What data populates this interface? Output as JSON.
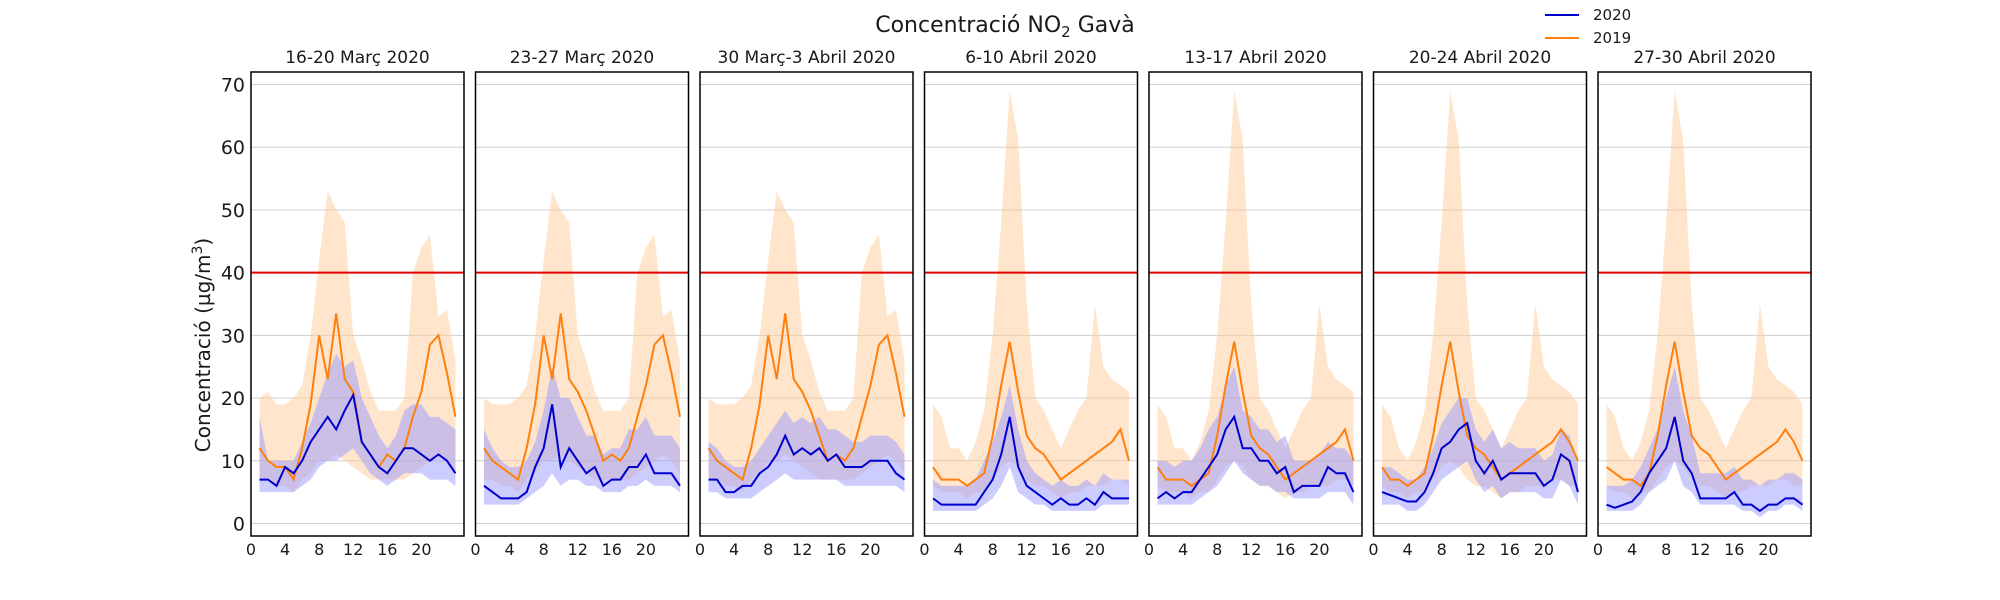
{
  "chart_data": {
    "type": "line",
    "title": "Concentració NO",
    "title_sub": "2",
    "title_suffix": " Gavà",
    "ylabel": "Concentració (µg/m",
    "ylabel_sup": "3",
    "ylabel_end": ")",
    "ylim": [
      -2,
      72
    ],
    "yticks": [
      0,
      10,
      20,
      30,
      40,
      50,
      60,
      70
    ],
    "xlim": [
      0,
      25
    ],
    "xticks": [
      0,
      4,
      8,
      12,
      16,
      20
    ],
    "grid": true,
    "legend_position": "top-right",
    "legend": [
      {
        "label": "2020",
        "color": "#0000cc"
      },
      {
        "label": "2019",
        "color": "#ff7f0e"
      }
    ],
    "colors": {
      "line_2020": "#0000cc",
      "band_2020": "#9999ff",
      "line_2019": "#ff7f0e",
      "band_2019": "#ffcc99",
      "limit": "#e00000"
    },
    "limit_value": 40,
    "hours": [
      1,
      2,
      3,
      4,
      5,
      6,
      7,
      8,
      9,
      10,
      11,
      12,
      13,
      14,
      15,
      16,
      17,
      18,
      19,
      20,
      21,
      22,
      23,
      24
    ],
    "panels": [
      {
        "title": "16-20 Març 2020",
        "series2020": [
          7,
          7,
          6,
          9,
          8,
          10,
          13,
          15,
          17,
          15,
          18,
          20.5,
          13,
          11,
          9,
          8,
          10,
          12,
          12,
          11,
          10,
          11,
          10,
          8
        ],
        "band2020_low": [
          5,
          5,
          5,
          5,
          5,
          6,
          7,
          9,
          10,
          10,
          11,
          12,
          10,
          8,
          7,
          6,
          7,
          8,
          8,
          8,
          7,
          7,
          7,
          6
        ],
        "band2020_high": [
          17,
          10,
          10,
          10,
          10,
          13,
          16,
          20,
          24,
          27,
          25,
          26,
          20,
          17,
          14,
          12,
          14,
          18,
          19,
          19,
          17,
          17,
          16,
          15
        ],
        "series2019": [
          12,
          10,
          9,
          9,
          7,
          12,
          19,
          30,
          23,
          33.5,
          23,
          21,
          13,
          11,
          9,
          11,
          10,
          12,
          17,
          21,
          28.5,
          30,
          24,
          17
        ],
        "band2019_low": [
          7,
          7,
          6,
          6,
          5,
          7,
          8,
          10,
          10,
          11,
          10,
          9,
          8,
          7,
          7,
          7,
          7,
          7,
          8,
          9,
          10,
          11,
          10,
          8
        ],
        "band2019_high": [
          20,
          21,
          19,
          19,
          20,
          22,
          30,
          42,
          53,
          50,
          48,
          30,
          26,
          21,
          18,
          18,
          18,
          20,
          40,
          44,
          46,
          33,
          34,
          26
        ]
      },
      {
        "title": "23-27 Març 2020",
        "series2020": [
          6,
          5,
          4,
          4,
          4,
          5,
          9,
          12,
          19,
          9,
          12,
          10,
          8,
          9,
          6,
          7,
          7,
          9,
          9,
          11,
          8,
          8,
          8,
          6
        ],
        "band2020_low": [
          3,
          3,
          3,
          3,
          3,
          4,
          5,
          6,
          8,
          6,
          7,
          7,
          6,
          6,
          5,
          5,
          5,
          6,
          6,
          7,
          6,
          6,
          6,
          5
        ],
        "band2020_high": [
          15,
          12,
          10,
          9,
          9,
          10,
          13,
          18,
          25,
          20,
          20,
          17,
          14,
          14,
          11,
          12,
          12,
          15,
          15,
          17,
          14,
          14,
          14,
          12
        ],
        "series2019": [
          12,
          10,
          9,
          8,
          7,
          12,
          19,
          30,
          23,
          33.5,
          23,
          21,
          18,
          14,
          10,
          11,
          10,
          12,
          17,
          22,
          28.5,
          30,
          24,
          17
        ],
        "band2019_low": [
          7,
          7,
          6,
          6,
          5,
          7,
          8,
          10,
          10,
          11,
          10,
          9,
          8,
          7,
          7,
          7,
          7,
          7,
          8,
          9,
          10,
          11,
          10,
          8
        ],
        "band2019_high": [
          20,
          19,
          19,
          19,
          20,
          22,
          30,
          42,
          53,
          50,
          48,
          30,
          26,
          21,
          18,
          18,
          18,
          20,
          40,
          44,
          46,
          33,
          34,
          26
        ]
      },
      {
        "title": "30 Març-3 Abril 2020",
        "series2020": [
          7,
          7,
          5,
          5,
          6,
          6,
          8,
          9,
          11,
          14,
          11,
          12,
          11,
          12,
          10,
          11,
          9,
          9,
          9,
          10,
          10,
          10,
          8,
          7
        ],
        "band2020_low": [
          5,
          5,
          4,
          4,
          4,
          4,
          5,
          6,
          7,
          8,
          7,
          7,
          7,
          7,
          7,
          7,
          6,
          6,
          6,
          6,
          6,
          6,
          6,
          5
        ],
        "band2020_high": [
          13,
          12,
          10,
          9,
          9,
          10,
          12,
          14,
          16,
          18,
          16,
          17,
          16,
          17,
          15,
          15,
          14,
          13,
          13,
          14,
          14,
          14,
          13,
          11
        ],
        "series2019": [
          12,
          10,
          9,
          8,
          7,
          12,
          19,
          30,
          23,
          33.5,
          23,
          21,
          18,
          14,
          10,
          11,
          10,
          12,
          17,
          22,
          28.5,
          30,
          24,
          17
        ],
        "band2019_low": [
          7,
          7,
          6,
          6,
          5,
          7,
          8,
          10,
          10,
          11,
          10,
          9,
          8,
          7,
          7,
          7,
          7,
          7,
          8,
          9,
          10,
          11,
          10,
          8
        ],
        "band2019_high": [
          20,
          19,
          19,
          19,
          20,
          22,
          30,
          42,
          53,
          50,
          48,
          30,
          26,
          21,
          18,
          18,
          18,
          20,
          40,
          44,
          46,
          33,
          34,
          26
        ]
      },
      {
        "title": "6-10 Abril 2020",
        "series2020": [
          4,
          3,
          3,
          3,
          3,
          3,
          5,
          7,
          11,
          17,
          9,
          6,
          5,
          4,
          3,
          4,
          3,
          3,
          4,
          3,
          5,
          4,
          4,
          4
        ],
        "band2020_low": [
          2,
          2,
          2,
          2,
          2,
          2,
          3,
          4,
          6,
          9,
          5,
          4,
          3,
          3,
          2,
          2,
          2,
          2,
          2,
          2,
          3,
          3,
          3,
          3
        ],
        "band2020_high": [
          7,
          6,
          6,
          6,
          6,
          7,
          10,
          13,
          17,
          22,
          15,
          10,
          8,
          7,
          6,
          7,
          6,
          6,
          7,
          6,
          8,
          7,
          7,
          7
        ],
        "series2019": [
          9,
          7,
          7,
          7,
          6,
          7,
          8,
          14,
          22,
          29,
          21,
          14,
          12,
          11,
          9,
          7,
          8,
          9,
          10,
          11,
          12,
          13,
          15,
          10
        ],
        "band2019_low": [
          6,
          5,
          5,
          5,
          4,
          5,
          5,
          7,
          9,
          10,
          9,
          7,
          6,
          6,
          5,
          4,
          5,
          5,
          6,
          6,
          6,
          7,
          7,
          6
        ],
        "band2019_high": [
          19,
          17,
          12,
          12,
          10,
          13,
          18,
          30,
          48,
          69,
          61,
          35,
          20,
          18,
          15,
          12,
          15,
          18,
          20,
          35,
          25,
          23,
          22,
          21
        ]
      },
      {
        "title": "13-17 Abril 2020",
        "series2020": [
          4,
          5,
          4,
          5,
          5,
          7,
          9,
          11,
          15,
          17,
          12,
          12,
          10,
          10,
          8,
          9,
          5,
          6,
          6,
          6,
          9,
          8,
          8,
          5
        ],
        "band2020_low": [
          3,
          3,
          3,
          3,
          3,
          4,
          5,
          6,
          8,
          10,
          8,
          7,
          6,
          6,
          5,
          5,
          4,
          4,
          4,
          4,
          5,
          5,
          5,
          3
        ],
        "band2020_high": [
          10,
          10,
          9,
          10,
          10,
          12,
          15,
          17,
          22,
          25,
          18,
          17,
          15,
          15,
          13,
          14,
          10,
          10,
          10,
          11,
          13,
          12,
          12,
          10
        ],
        "series2019": [
          9,
          7,
          7,
          7,
          6,
          7,
          8,
          14,
          22,
          29,
          21,
          14,
          12,
          11,
          9,
          7,
          8,
          9,
          10,
          11,
          12,
          13,
          15,
          10
        ],
        "band2019_low": [
          6,
          5,
          5,
          5,
          4,
          5,
          5,
          7,
          9,
          10,
          9,
          7,
          6,
          6,
          5,
          4,
          5,
          5,
          6,
          6,
          6,
          7,
          7,
          6
        ],
        "band2019_high": [
          19,
          17,
          12,
          12,
          10,
          13,
          18,
          30,
          48,
          69,
          61,
          35,
          20,
          18,
          15,
          12,
          15,
          18,
          20,
          35,
          25,
          23,
          22,
          21
        ]
      },
      {
        "title": "20-24 Abril 2020",
        "series2020": [
          5,
          4.5,
          4,
          3.5,
          3.5,
          5,
          8,
          12,
          13,
          15,
          16,
          10,
          8,
          10,
          7,
          8,
          8,
          8,
          8,
          6,
          7,
          11,
          10,
          5
        ],
        "band2020_low": [
          3,
          3,
          3,
          2,
          2,
          3,
          5,
          7,
          8,
          9,
          10,
          7,
          5,
          6,
          4,
          5,
          5,
          5,
          5,
          4,
          4,
          7,
          6,
          3
        ],
        "band2020_high": [
          9,
          9,
          8,
          7,
          7,
          9,
          12,
          16,
          18,
          20,
          20,
          15,
          13,
          15,
          12,
          13,
          12,
          12,
          12,
          10,
          11,
          15,
          14,
          10
        ],
        "series2019": [
          9,
          7,
          7,
          6,
          7,
          8,
          14,
          22,
          29,
          21,
          14,
          12,
          11,
          9,
          7,
          8,
          9,
          10,
          11,
          12,
          13,
          15,
          13,
          10
        ],
        "band2019_low": [
          6,
          5,
          5,
          4,
          5,
          5,
          7,
          9,
          10,
          9,
          7,
          6,
          6,
          5,
          4,
          5,
          5,
          6,
          6,
          6,
          7,
          7,
          6,
          6
        ],
        "band2019_high": [
          19,
          17,
          12,
          10,
          13,
          18,
          30,
          48,
          69,
          61,
          35,
          20,
          18,
          15,
          12,
          15,
          18,
          20,
          35,
          25,
          23,
          22,
          21,
          19
        ]
      },
      {
        "title": "27-30 Abril 2020",
        "series2020": [
          3,
          2.5,
          3,
          3.5,
          5,
          8,
          10,
          12,
          17,
          10,
          8,
          4,
          4,
          4,
          4,
          5,
          3,
          3,
          2,
          3,
          3,
          4,
          4,
          3
        ],
        "band2020_low": [
          2,
          2,
          2,
          2,
          3,
          5,
          6,
          7,
          10,
          6,
          5,
          3,
          3,
          3,
          3,
          3,
          2,
          2,
          1,
          2,
          2,
          3,
          3,
          2
        ],
        "band2020_high": [
          6,
          6,
          6,
          7,
          9,
          12,
          15,
          20,
          25,
          18,
          14,
          8,
          8,
          8,
          8,
          9,
          7,
          7,
          6,
          7,
          7,
          8,
          8,
          7
        ],
        "series2019": [
          9,
          8,
          7,
          7,
          6,
          8,
          14,
          22,
          29,
          21,
          14,
          12,
          11,
          9,
          7,
          8,
          9,
          10,
          11,
          12,
          13,
          15,
          13,
          10
        ],
        "band2019_low": [
          6,
          5,
          5,
          4,
          5,
          5,
          7,
          9,
          10,
          9,
          7,
          6,
          6,
          5,
          4,
          5,
          5,
          6,
          6,
          6,
          7,
          7,
          6,
          6
        ],
        "band2019_high": [
          19,
          17,
          12,
          10,
          13,
          18,
          30,
          48,
          69,
          61,
          35,
          20,
          18,
          15,
          12,
          15,
          18,
          20,
          35,
          25,
          23,
          22,
          21,
          19
        ]
      }
    ]
  }
}
